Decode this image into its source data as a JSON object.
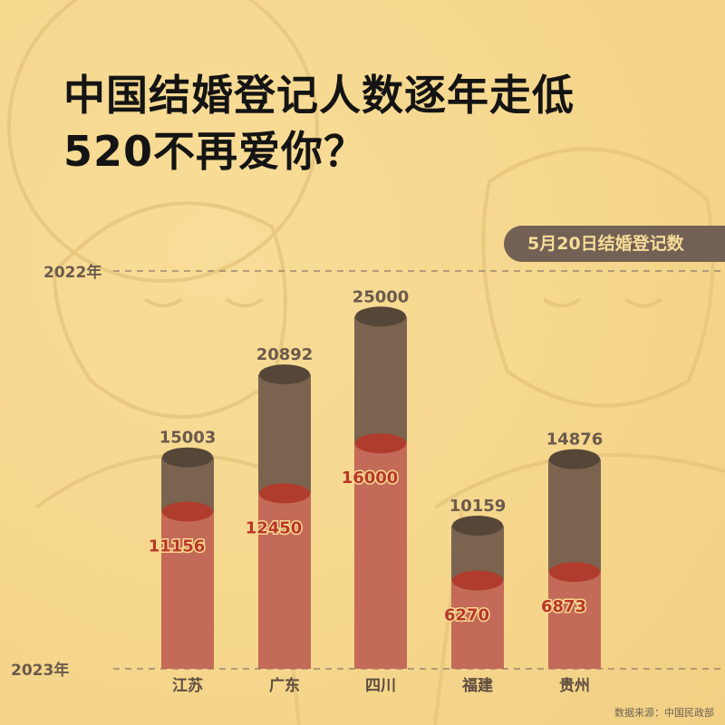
{
  "title_line1": "中国结婚登记人数逐年走低",
  "title_line2": "520不再爱你？",
  "badge": "5月20日结婚登记数",
  "source": "数据来源：中国民政部",
  "colors": {
    "background": "#f6d990",
    "bar_2022": "#7a6450",
    "bar_2022_top": "#564638",
    "bar_2023": "#c46a58",
    "bar_2023_top": "#b03c2e",
    "label_2022": "#6b5a4c",
    "label_2023": "#b8372b"
  },
  "chart_data": {
    "type": "bar",
    "title": "中国结婚登记人数逐年走低 520不再爱你？",
    "categories": [
      "江苏",
      "广东",
      "四川",
      "福建",
      "贵州"
    ],
    "series": [
      {
        "name": "2022年",
        "values": [
          15003,
          20892,
          25000,
          10159,
          14876
        ]
      },
      {
        "name": "2023年",
        "values": [
          11156,
          12450,
          16000,
          6270,
          6873
        ]
      }
    ],
    "ylim": [
      0,
      30000
    ],
    "grid": false,
    "legend": "left-reference-lines"
  }
}
